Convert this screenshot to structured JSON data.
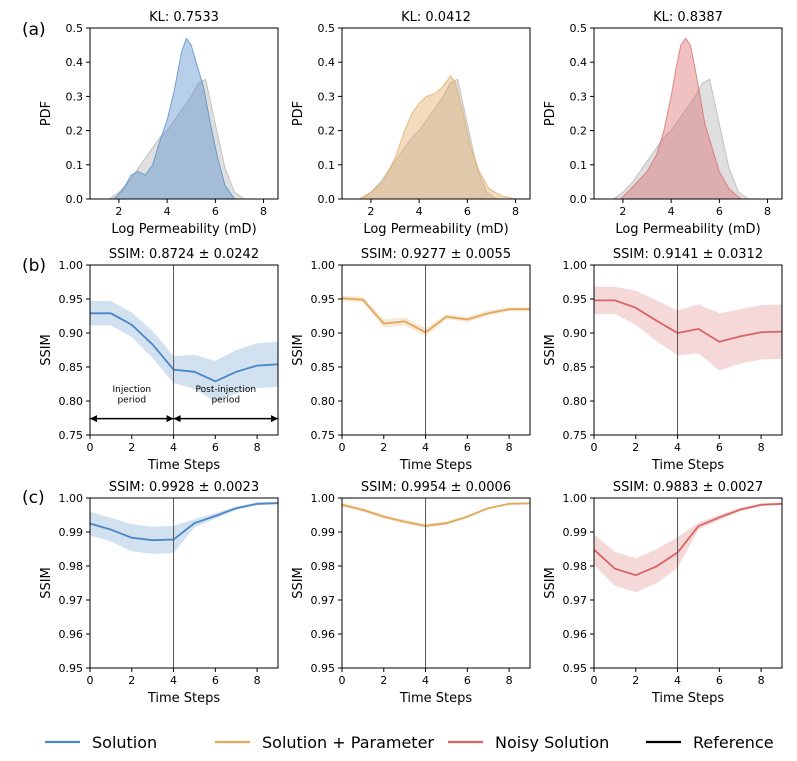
{
  "panel_labels": [
    "(a)",
    "(b)",
    "(c)"
  ],
  "legend": [
    {
      "label": "Solution",
      "color": "#4a86c5"
    },
    {
      "label": "Solution + Parameter",
      "color": "#e0a85a"
    },
    {
      "label": "Noisy Solution",
      "color": "#d96464"
    },
    {
      "label": "Reference",
      "color": "#000000"
    }
  ],
  "reference_color": "#b0b0b0",
  "annotations": {
    "injection": [
      "Injection",
      "period"
    ],
    "post_injection": [
      "Post-injection",
      "period"
    ]
  },
  "chart_data": [
    {
      "type": "area",
      "row": 0,
      "col": 0,
      "title": "KL: 0.7533",
      "xlabel": "Log Permeability (mD)",
      "ylabel": "PDF",
      "xlim": [
        0.8,
        8.6
      ],
      "ylim": [
        0,
        0.5
      ],
      "xticks": [
        2,
        4,
        6,
        8
      ],
      "yticks": [
        0.0,
        0.1,
        0.2,
        0.3,
        0.4,
        0.5
      ],
      "series": [
        {
          "name": "Reference",
          "color": "#b0b0b0",
          "x": [
            1.6,
            2.0,
            2.4,
            2.8,
            3.0,
            3.4,
            3.7,
            4.0,
            4.3,
            4.6,
            5.0,
            5.3,
            5.6,
            6.0,
            6.4,
            6.8,
            7.2
          ],
          "y": [
            0,
            0.02,
            0.05,
            0.09,
            0.11,
            0.15,
            0.18,
            0.2,
            0.23,
            0.26,
            0.3,
            0.34,
            0.35,
            0.22,
            0.09,
            0.02,
            0
          ]
        },
        {
          "name": "Solution",
          "color": "#4a86c5",
          "x": [
            1.8,
            2.2,
            2.5,
            2.8,
            3.1,
            3.4,
            3.7,
            4.0,
            4.3,
            4.6,
            4.8,
            5.0,
            5.2,
            5.5,
            5.8,
            6.1,
            6.4,
            6.8
          ],
          "y": [
            0,
            0.03,
            0.07,
            0.08,
            0.07,
            0.1,
            0.17,
            0.23,
            0.32,
            0.43,
            0.47,
            0.45,
            0.4,
            0.33,
            0.22,
            0.12,
            0.04,
            0
          ]
        }
      ]
    },
    {
      "type": "area",
      "row": 0,
      "col": 1,
      "title": "KL: 0.0412",
      "xlabel": "Log Permeability (mD)",
      "ylabel": "PDF",
      "xlim": [
        0.8,
        8.6
      ],
      "ylim": [
        0,
        0.5
      ],
      "xticks": [
        2,
        4,
        6,
        8
      ],
      "yticks": [
        0.0,
        0.1,
        0.2,
        0.3,
        0.4,
        0.5
      ],
      "series": [
        {
          "name": "Reference",
          "color": "#b0b0b0",
          "x": [
            1.6,
            2.0,
            2.4,
            2.8,
            3.0,
            3.4,
            3.7,
            4.0,
            4.3,
            4.6,
            5.0,
            5.3,
            5.6,
            6.0,
            6.4,
            6.8,
            7.2
          ],
          "y": [
            0,
            0.02,
            0.05,
            0.09,
            0.11,
            0.15,
            0.18,
            0.2,
            0.23,
            0.26,
            0.3,
            0.34,
            0.35,
            0.22,
            0.09,
            0.02,
            0
          ]
        },
        {
          "name": "Solution + Parameter",
          "color": "#e0a85a",
          "x": [
            1.5,
            2.0,
            2.5,
            3.0,
            3.4,
            3.7,
            4.0,
            4.3,
            4.7,
            5.0,
            5.3,
            5.5,
            5.8,
            6.1,
            6.5,
            6.9,
            7.4,
            8.0
          ],
          "y": [
            0,
            0.02,
            0.05,
            0.12,
            0.2,
            0.25,
            0.28,
            0.3,
            0.31,
            0.33,
            0.36,
            0.34,
            0.26,
            0.16,
            0.08,
            0.03,
            0.01,
            0
          ]
        }
      ]
    },
    {
      "type": "area",
      "row": 0,
      "col": 2,
      "title": "KL: 0.8387",
      "xlabel": "Log Permeability (mD)",
      "ylabel": "PDF",
      "xlim": [
        0.8,
        8.6
      ],
      "ylim": [
        0,
        0.5
      ],
      "xticks": [
        2,
        4,
        6,
        8
      ],
      "yticks": [
        0.0,
        0.1,
        0.2,
        0.3,
        0.4,
        0.5
      ],
      "series": [
        {
          "name": "Reference",
          "color": "#b0b0b0",
          "x": [
            1.6,
            2.0,
            2.4,
            2.8,
            3.0,
            3.4,
            3.7,
            4.0,
            4.3,
            4.6,
            5.0,
            5.3,
            5.6,
            6.0,
            6.4,
            6.8,
            7.2
          ],
          "y": [
            0,
            0.02,
            0.05,
            0.09,
            0.11,
            0.15,
            0.18,
            0.2,
            0.23,
            0.26,
            0.3,
            0.34,
            0.35,
            0.22,
            0.09,
            0.02,
            0
          ]
        },
        {
          "name": "Noisy Solution",
          "color": "#d96464",
          "x": [
            1.9,
            2.2,
            2.6,
            3.0,
            3.4,
            3.7,
            4.0,
            4.2,
            4.4,
            4.6,
            4.8,
            5.0,
            5.2,
            5.4,
            5.7,
            6.0,
            6.4,
            6.9
          ],
          "y": [
            0,
            0.02,
            0.05,
            0.08,
            0.13,
            0.2,
            0.3,
            0.38,
            0.45,
            0.47,
            0.45,
            0.38,
            0.3,
            0.22,
            0.15,
            0.08,
            0.03,
            0
          ]
        }
      ]
    },
    {
      "type": "line",
      "row": 1,
      "col": 0,
      "title": "SSIM: 0.8724 ± 0.0242",
      "xlabel": "Time Steps",
      "ylabel": "SSIM",
      "xlim": [
        0,
        9
      ],
      "ylim": [
        0.75,
        1.0
      ],
      "xticks": [
        0,
        2,
        4,
        6,
        8
      ],
      "yticks": [
        0.75,
        0.8,
        0.85,
        0.9,
        0.95,
        1.0
      ],
      "vline": 4,
      "show_periods": true,
      "series": [
        {
          "name": "Solution",
          "color": "#4a86c5",
          "x": [
            0,
            1,
            2,
            3,
            4,
            5,
            6,
            7,
            8,
            9
          ],
          "mean": [
            0.929,
            0.929,
            0.912,
            0.883,
            0.846,
            0.843,
            0.829,
            0.843,
            0.852,
            0.854
          ],
          "std": [
            0.018,
            0.018,
            0.018,
            0.02,
            0.02,
            0.025,
            0.03,
            0.032,
            0.033,
            0.033
          ]
        }
      ]
    },
    {
      "type": "line",
      "row": 1,
      "col": 1,
      "title": "SSIM: 0.9277 ± 0.0055",
      "xlabel": "Time Steps",
      "ylabel": "SSIM",
      "xlim": [
        0,
        9
      ],
      "ylim": [
        0.75,
        1.0
      ],
      "xticks": [
        0,
        2,
        4,
        6,
        8
      ],
      "yticks": [
        0.75,
        0.8,
        0.85,
        0.9,
        0.95,
        1.0
      ],
      "vline": 4,
      "show_periods": false,
      "series": [
        {
          "name": "Solution + Parameter",
          "color": "#e0a85a",
          "x": [
            0,
            1,
            2,
            3,
            4,
            5,
            6,
            7,
            8,
            9
          ],
          "mean": [
            0.951,
            0.949,
            0.914,
            0.917,
            0.901,
            0.924,
            0.92,
            0.929,
            0.935,
            0.935
          ],
          "std": [
            0.004,
            0.004,
            0.006,
            0.006,
            0.006,
            0.004,
            0.004,
            0.004,
            0.003,
            0.003
          ]
        }
      ]
    },
    {
      "type": "line",
      "row": 1,
      "col": 2,
      "title": "SSIM: 0.9141 ± 0.0312",
      "xlabel": "Time Steps",
      "ylabel": "SSIM",
      "xlim": [
        0,
        9
      ],
      "ylim": [
        0.75,
        1.0
      ],
      "xticks": [
        0,
        2,
        4,
        6,
        8
      ],
      "yticks": [
        0.75,
        0.8,
        0.85,
        0.9,
        0.95,
        1.0
      ],
      "vline": 4,
      "show_periods": false,
      "series": [
        {
          "name": "Noisy Solution",
          "color": "#d96464",
          "x": [
            0,
            1,
            2,
            3,
            4,
            5,
            6,
            7,
            8,
            9
          ],
          "mean": [
            0.948,
            0.948,
            0.937,
            0.918,
            0.9,
            0.906,
            0.887,
            0.895,
            0.901,
            0.902
          ],
          "std": [
            0.02,
            0.02,
            0.025,
            0.03,
            0.033,
            0.036,
            0.042,
            0.04,
            0.04,
            0.04
          ]
        }
      ]
    },
    {
      "type": "line",
      "row": 2,
      "col": 0,
      "title": "SSIM: 0.9928 ± 0.0023",
      "xlabel": "Time Steps",
      "ylabel": "SSIM",
      "xlim": [
        0,
        9
      ],
      "ylim": [
        0.95,
        1.0
      ],
      "xticks": [
        0,
        2,
        4,
        6,
        8
      ],
      "yticks": [
        0.95,
        0.96,
        0.97,
        0.98,
        0.99,
        1.0
      ],
      "vline": 4,
      "show_periods": false,
      "series": [
        {
          "name": "Solution",
          "color": "#4a86c5",
          "x": [
            0,
            1,
            2,
            3,
            4,
            5,
            6,
            7,
            8,
            9
          ],
          "mean": [
            0.9925,
            0.9907,
            0.9883,
            0.9876,
            0.9878,
            0.9926,
            0.9947,
            0.997,
            0.9983,
            0.9985
          ],
          "std": [
            0.0035,
            0.0035,
            0.004,
            0.004,
            0.004,
            0.0012,
            0.0008,
            0.0005,
            0.0004,
            0.0004
          ]
        }
      ]
    },
    {
      "type": "line",
      "row": 2,
      "col": 1,
      "title": "SSIM: 0.9954 ± 0.0006",
      "xlabel": "Time Steps",
      "ylabel": "SSIM",
      "xlim": [
        0,
        9
      ],
      "ylim": [
        0.95,
        1.0
      ],
      "xticks": [
        0,
        2,
        4,
        6,
        8
      ],
      "yticks": [
        0.95,
        0.96,
        0.97,
        0.98,
        0.99,
        1.0
      ],
      "vline": 4,
      "show_periods": false,
      "series": [
        {
          "name": "Solution + Parameter",
          "color": "#e0a85a",
          "x": [
            0,
            1,
            2,
            3,
            4,
            5,
            6,
            7,
            8,
            9
          ],
          "mean": [
            0.998,
            0.9965,
            0.9945,
            0.993,
            0.9918,
            0.9926,
            0.9945,
            0.997,
            0.9983,
            0.9984
          ],
          "std": [
            0.0006,
            0.0006,
            0.0006,
            0.0006,
            0.0006,
            0.0005,
            0.0004,
            0.0003,
            0.0003,
            0.0003
          ]
        }
      ]
    },
    {
      "type": "line",
      "row": 2,
      "col": 2,
      "title": "SSIM: 0.9883 ± 0.0027",
      "xlabel": "Time Steps",
      "ylabel": "SSIM",
      "xlim": [
        0,
        9
      ],
      "ylim": [
        0.95,
        1.0
      ],
      "xticks": [
        0,
        2,
        4,
        6,
        8
      ],
      "yticks": [
        0.95,
        0.96,
        0.97,
        0.98,
        0.99,
        1.0
      ],
      "vline": 4,
      "show_periods": false,
      "series": [
        {
          "name": "Noisy Solution",
          "color": "#d96464",
          "x": [
            0,
            1,
            2,
            3,
            4,
            5,
            6,
            7,
            8,
            9
          ],
          "mean": [
            0.9848,
            0.9792,
            0.9773,
            0.9799,
            0.984,
            0.9917,
            0.9943,
            0.9966,
            0.998,
            0.9983
          ],
          "std": [
            0.0045,
            0.005,
            0.005,
            0.005,
            0.0045,
            0.001,
            0.0008,
            0.0005,
            0.0004,
            0.0004
          ]
        }
      ]
    }
  ]
}
